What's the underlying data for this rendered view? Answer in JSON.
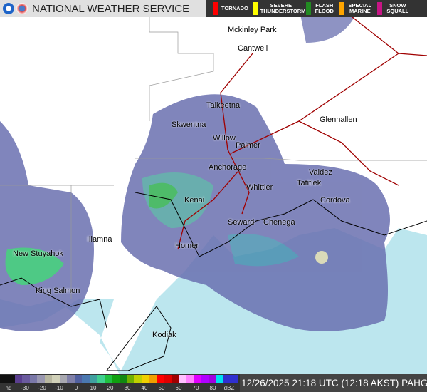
{
  "header": {
    "title": "NATIONAL WEATHER SERVICE",
    "warnings": [
      {
        "label": "TORNADO",
        "color": "#ff0000"
      },
      {
        "label": "SEVERE THUNDERSTORM",
        "color": "#ffff00"
      },
      {
        "label": "FLASH FLOOD",
        "color": "#228b22"
      },
      {
        "label": "SPECIAL MARINE",
        "color": "#ffa500"
      },
      {
        "label": "SNOW SQUALL",
        "color": "#c71585"
      }
    ]
  },
  "cities": [
    "Mckinley Park",
    "Cantwell",
    "Talkeetna",
    "Glennallen",
    "Skwentna",
    "Willow",
    "Palmer",
    "Anchorage",
    "Valdez",
    "Whittier",
    "Tatitlek",
    "Cordova",
    "Kenai",
    "Seward",
    "Chenega",
    "Iliamna",
    "Homer",
    "New Stuyahok",
    "King Salmon",
    "Kodiak"
  ],
  "legend": {
    "labels": [
      "nd",
      "-30",
      "-20",
      "-10",
      "0",
      "10",
      "20",
      "30",
      "40",
      "50",
      "60",
      "70",
      "80",
      "dBZ"
    ],
    "colors": [
      "#111",
      "#111",
      "#5a3e8f",
      "#6a5a9e",
      "#7a78a8",
      "#9a98b0",
      "#b8b7a0",
      "#d0d0b8",
      "#a8a8b0",
      "#8080a8",
      "#5060a0",
      "#4a78b0",
      "#40a0a0",
      "#40d090",
      "#20c040",
      "#10a010",
      "#108810",
      "#70b000",
      "#c0d000",
      "#f0d000",
      "#f0a000",
      "#ff0000",
      "#e00000",
      "#a00000",
      "#ffc0ff",
      "#ff80ff",
      "#e000ff",
      "#b000ff",
      "#a000e0",
      "#00e0f0",
      "#3030d0",
      "#3030d0"
    ]
  },
  "timestamp": "12/26/2025 21:18 UTC (12:18 AKST) PAHG"
}
